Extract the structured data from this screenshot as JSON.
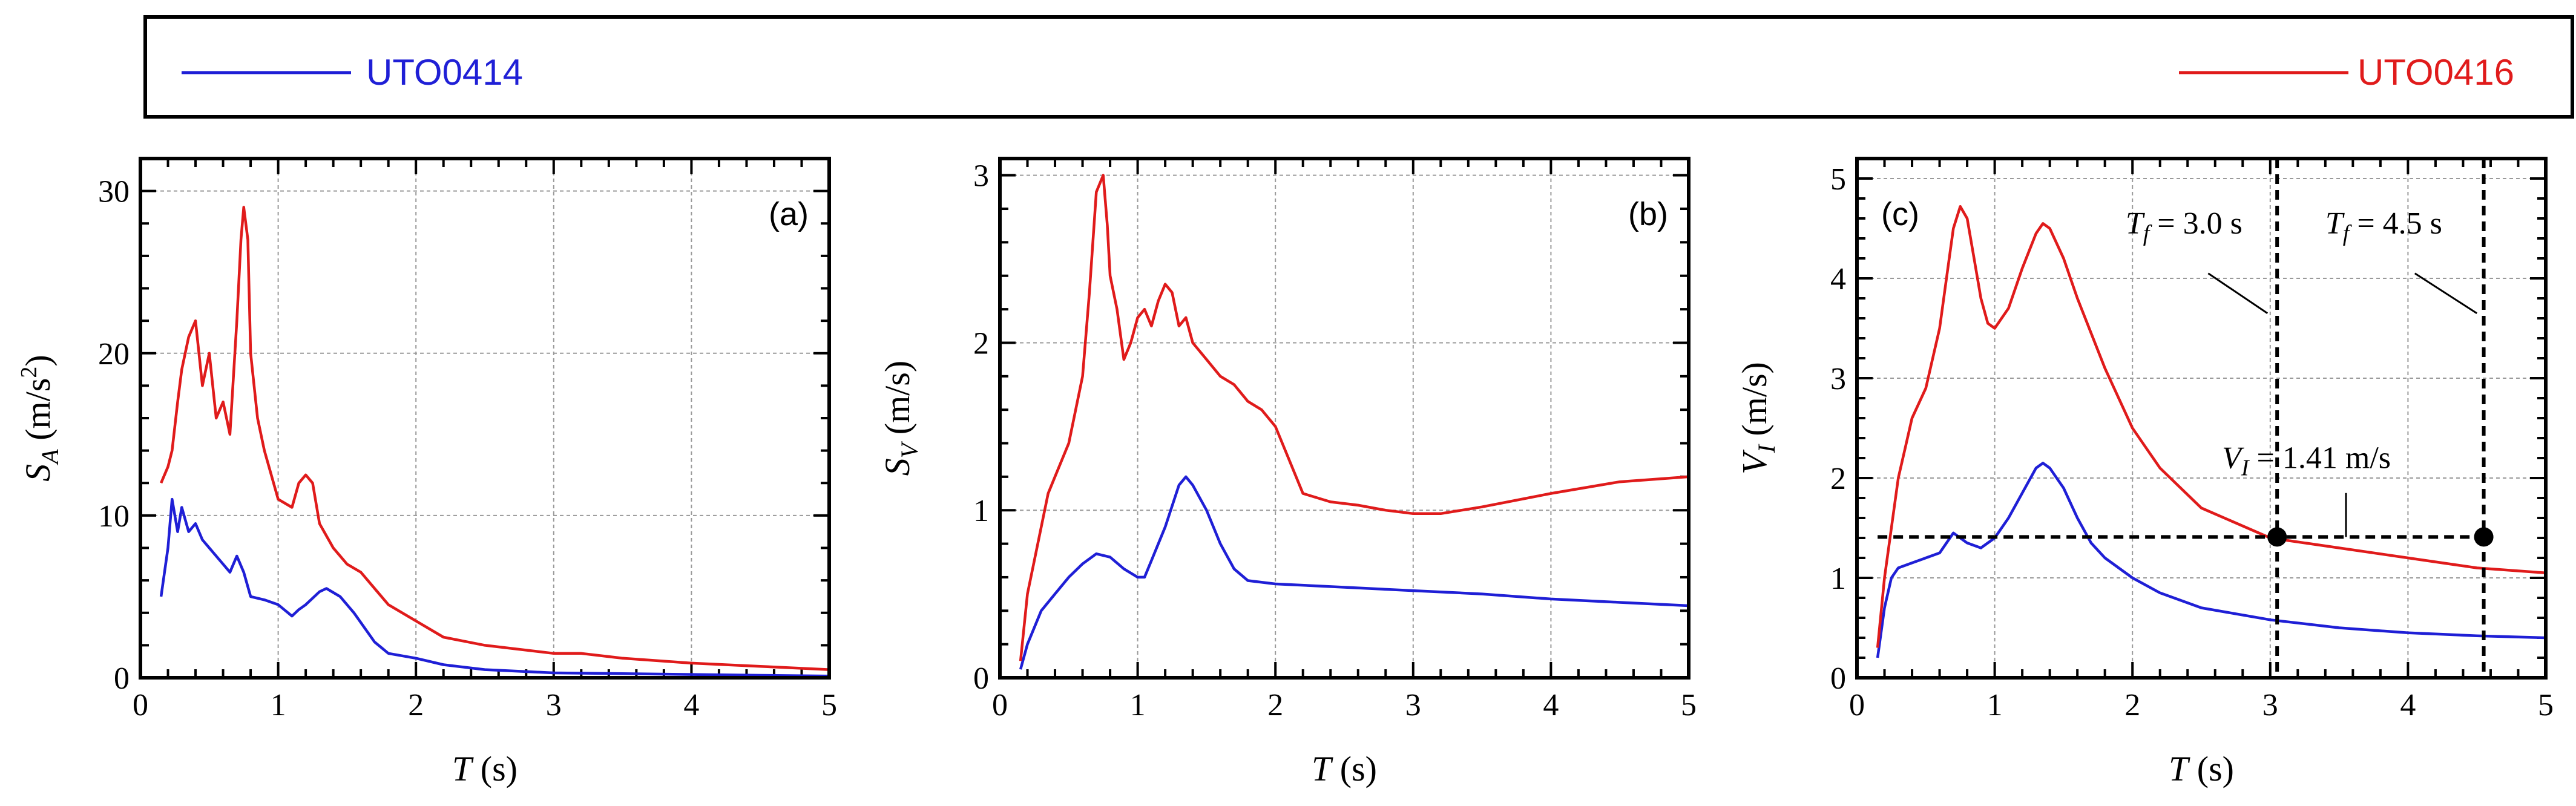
{
  "legend": {
    "entries": [
      {
        "label": "UTO0414",
        "color": "#1f1fd6"
      },
      {
        "label": "UTO0416",
        "color": "#e01b1b"
      }
    ]
  },
  "chart_data": [
    {
      "type": "line",
      "panel": "(a)",
      "ylabel_main": "S",
      "ylabel_sub": "A",
      "ylabel_unit_pre": "(m/s",
      "ylabel_unit_sup": "2",
      "ylabel_unit_post": ")",
      "xlabel_main": "T",
      "xlabel_unit": "(s)",
      "xlim": [
        0,
        5
      ],
      "ylim": [
        0,
        32
      ],
      "xticks": [
        0,
        1,
        2,
        3,
        4,
        5
      ],
      "yticks": [
        0,
        10,
        20,
        30
      ],
      "series": [
        {
          "name": "UTO0414",
          "color": "#1f1fd6",
          "x": [
            0.15,
            0.2,
            0.23,
            0.27,
            0.3,
            0.35,
            0.4,
            0.45,
            0.5,
            0.55,
            0.6,
            0.65,
            0.7,
            0.75,
            0.8,
            0.9,
            1.0,
            1.1,
            1.15,
            1.2,
            1.3,
            1.35,
            1.45,
            1.55,
            1.7,
            1.8,
            2.0,
            2.2,
            2.5,
            3.0,
            3.5,
            4.0,
            4.5,
            5.0
          ],
          "y": [
            5,
            8,
            11,
            9,
            10.5,
            9,
            9.5,
            8.5,
            8,
            7.5,
            7,
            6.5,
            7.5,
            6.5,
            5,
            4.8,
            4.5,
            3.8,
            4.2,
            4.5,
            5.3,
            5.5,
            5,
            4,
            2.2,
            1.5,
            1.2,
            0.8,
            0.5,
            0.3,
            0.25,
            0.2,
            0.15,
            0.1
          ]
        },
        {
          "name": "UTO0416",
          "color": "#e01b1b",
          "x": [
            0.15,
            0.2,
            0.23,
            0.27,
            0.3,
            0.35,
            0.4,
            0.45,
            0.5,
            0.55,
            0.6,
            0.65,
            0.7,
            0.73,
            0.75,
            0.78,
            0.8,
            0.85,
            0.9,
            1.0,
            1.1,
            1.15,
            1.2,
            1.25,
            1.3,
            1.4,
            1.5,
            1.6,
            1.7,
            1.8,
            2.0,
            2.2,
            2.5,
            3.0,
            3.2,
            3.5,
            4.0,
            4.5,
            5.0
          ],
          "y": [
            12,
            13,
            14,
            17,
            19,
            21,
            22,
            18,
            20,
            16,
            17,
            15,
            22,
            27,
            29,
            27,
            20,
            16,
            14,
            11,
            10.5,
            12,
            12.5,
            12,
            9.5,
            8,
            7,
            6.5,
            5.5,
            4.5,
            3.5,
            2.5,
            2,
            1.5,
            1.5,
            1.2,
            0.9,
            0.7,
            0.5
          ]
        }
      ]
    },
    {
      "type": "line",
      "panel": "(b)",
      "ylabel_main": "S",
      "ylabel_sub": "V",
      "ylabel_unit": "(m/s)",
      "xlabel_main": "T",
      "xlabel_unit": "(s)",
      "xlim": [
        0,
        5
      ],
      "ylim": [
        0,
        3.1
      ],
      "xticks": [
        0,
        1,
        2,
        3,
        4,
        5
      ],
      "yticks": [
        0,
        1,
        2,
        3
      ],
      "series": [
        {
          "name": "UTO0414",
          "color": "#1f1fd6",
          "x": [
            0.15,
            0.2,
            0.25,
            0.3,
            0.4,
            0.5,
            0.6,
            0.7,
            0.8,
            0.9,
            1.0,
            1.05,
            1.1,
            1.2,
            1.3,
            1.35,
            1.4,
            1.5,
            1.6,
            1.7,
            1.8,
            2.0,
            2.5,
            3.0,
            3.5,
            4.0,
            4.5,
            5.0
          ],
          "y": [
            0.05,
            0.2,
            0.3,
            0.4,
            0.5,
            0.6,
            0.68,
            0.74,
            0.72,
            0.65,
            0.6,
            0.6,
            0.7,
            0.9,
            1.15,
            1.2,
            1.15,
            1.0,
            0.8,
            0.65,
            0.58,
            0.56,
            0.54,
            0.52,
            0.5,
            0.47,
            0.45,
            0.43
          ]
        },
        {
          "name": "UTO0416",
          "color": "#e01b1b",
          "x": [
            0.15,
            0.2,
            0.25,
            0.3,
            0.35,
            0.4,
            0.45,
            0.5,
            0.55,
            0.6,
            0.65,
            0.7,
            0.75,
            0.78,
            0.8,
            0.85,
            0.9,
            0.95,
            1.0,
            1.05,
            1.1,
            1.15,
            1.2,
            1.25,
            1.3,
            1.35,
            1.4,
            1.5,
            1.6,
            1.7,
            1.8,
            1.9,
            2.0,
            2.1,
            2.2,
            2.4,
            2.6,
            2.8,
            3.0,
            3.2,
            3.5,
            4.0,
            4.5,
            5.0
          ],
          "y": [
            0.1,
            0.5,
            0.7,
            0.9,
            1.1,
            1.2,
            1.3,
            1.4,
            1.6,
            1.8,
            2.3,
            2.9,
            3.0,
            2.7,
            2.4,
            2.2,
            1.9,
            2.0,
            2.15,
            2.2,
            2.1,
            2.25,
            2.35,
            2.3,
            2.1,
            2.15,
            2.0,
            1.9,
            1.8,
            1.75,
            1.65,
            1.6,
            1.5,
            1.3,
            1.1,
            1.05,
            1.03,
            1.0,
            0.98,
            0.98,
            1.02,
            1.1,
            1.17,
            1.2
          ]
        }
      ]
    },
    {
      "type": "line",
      "panel": "(c)",
      "ylabel_main": "V",
      "ylabel_sub": "I",
      "ylabel_unit": "(m/s)",
      "xlabel_main": "T",
      "xlabel_unit": "(s)",
      "xlim": [
        0,
        5
      ],
      "ylim": [
        0,
        5.2
      ],
      "xticks": [
        0,
        1,
        2,
        3,
        4,
        5
      ],
      "yticks": [
        0,
        1,
        2,
        3,
        4,
        5
      ],
      "series": [
        {
          "name": "UTO0414",
          "color": "#1f1fd6",
          "x": [
            0.15,
            0.2,
            0.25,
            0.3,
            0.4,
            0.5,
            0.6,
            0.7,
            0.75,
            0.8,
            0.9,
            1.0,
            1.1,
            1.2,
            1.3,
            1.35,
            1.4,
            1.5,
            1.6,
            1.7,
            1.8,
            2.0,
            2.2,
            2.5,
            3.0,
            3.5,
            4.0,
            4.5,
            5.0
          ],
          "y": [
            0.2,
            0.7,
            1.0,
            1.1,
            1.15,
            1.2,
            1.25,
            1.45,
            1.4,
            1.35,
            1.3,
            1.4,
            1.6,
            1.85,
            2.1,
            2.15,
            2.1,
            1.9,
            1.6,
            1.35,
            1.2,
            1.0,
            0.85,
            0.7,
            0.58,
            0.5,
            0.45,
            0.42,
            0.4
          ]
        },
        {
          "name": "UTO0416",
          "color": "#e01b1b",
          "x": [
            0.15,
            0.2,
            0.25,
            0.3,
            0.35,
            0.4,
            0.5,
            0.6,
            0.65,
            0.7,
            0.75,
            0.8,
            0.85,
            0.9,
            0.95,
            1.0,
            1.1,
            1.2,
            1.3,
            1.35,
            1.4,
            1.5,
            1.6,
            1.8,
            2.0,
            2.2,
            2.5,
            3.0,
            3.5,
            4.0,
            4.5,
            5.0
          ],
          "y": [
            0.3,
            1.0,
            1.5,
            2.0,
            2.3,
            2.6,
            2.9,
            3.5,
            4.0,
            4.5,
            4.72,
            4.6,
            4.2,
            3.8,
            3.55,
            3.5,
            3.7,
            4.1,
            4.45,
            4.55,
            4.5,
            4.2,
            3.8,
            3.1,
            2.5,
            2.1,
            1.7,
            1.4,
            1.3,
            1.2,
            1.1,
            1.05
          ]
        }
      ],
      "annotations": {
        "tf1": {
          "pre": "T",
          "sub": "f",
          "text": " = 3.0 s",
          "x": 3.05
        },
        "tf2": {
          "pre": "T",
          "sub": "f",
          "text": " = 4.5 s",
          "x": 4.55
        },
        "vi": {
          "pre": "V",
          "sub": "I",
          "text": " = 1.41 m/s",
          "y": 1.41
        }
      }
    }
  ]
}
